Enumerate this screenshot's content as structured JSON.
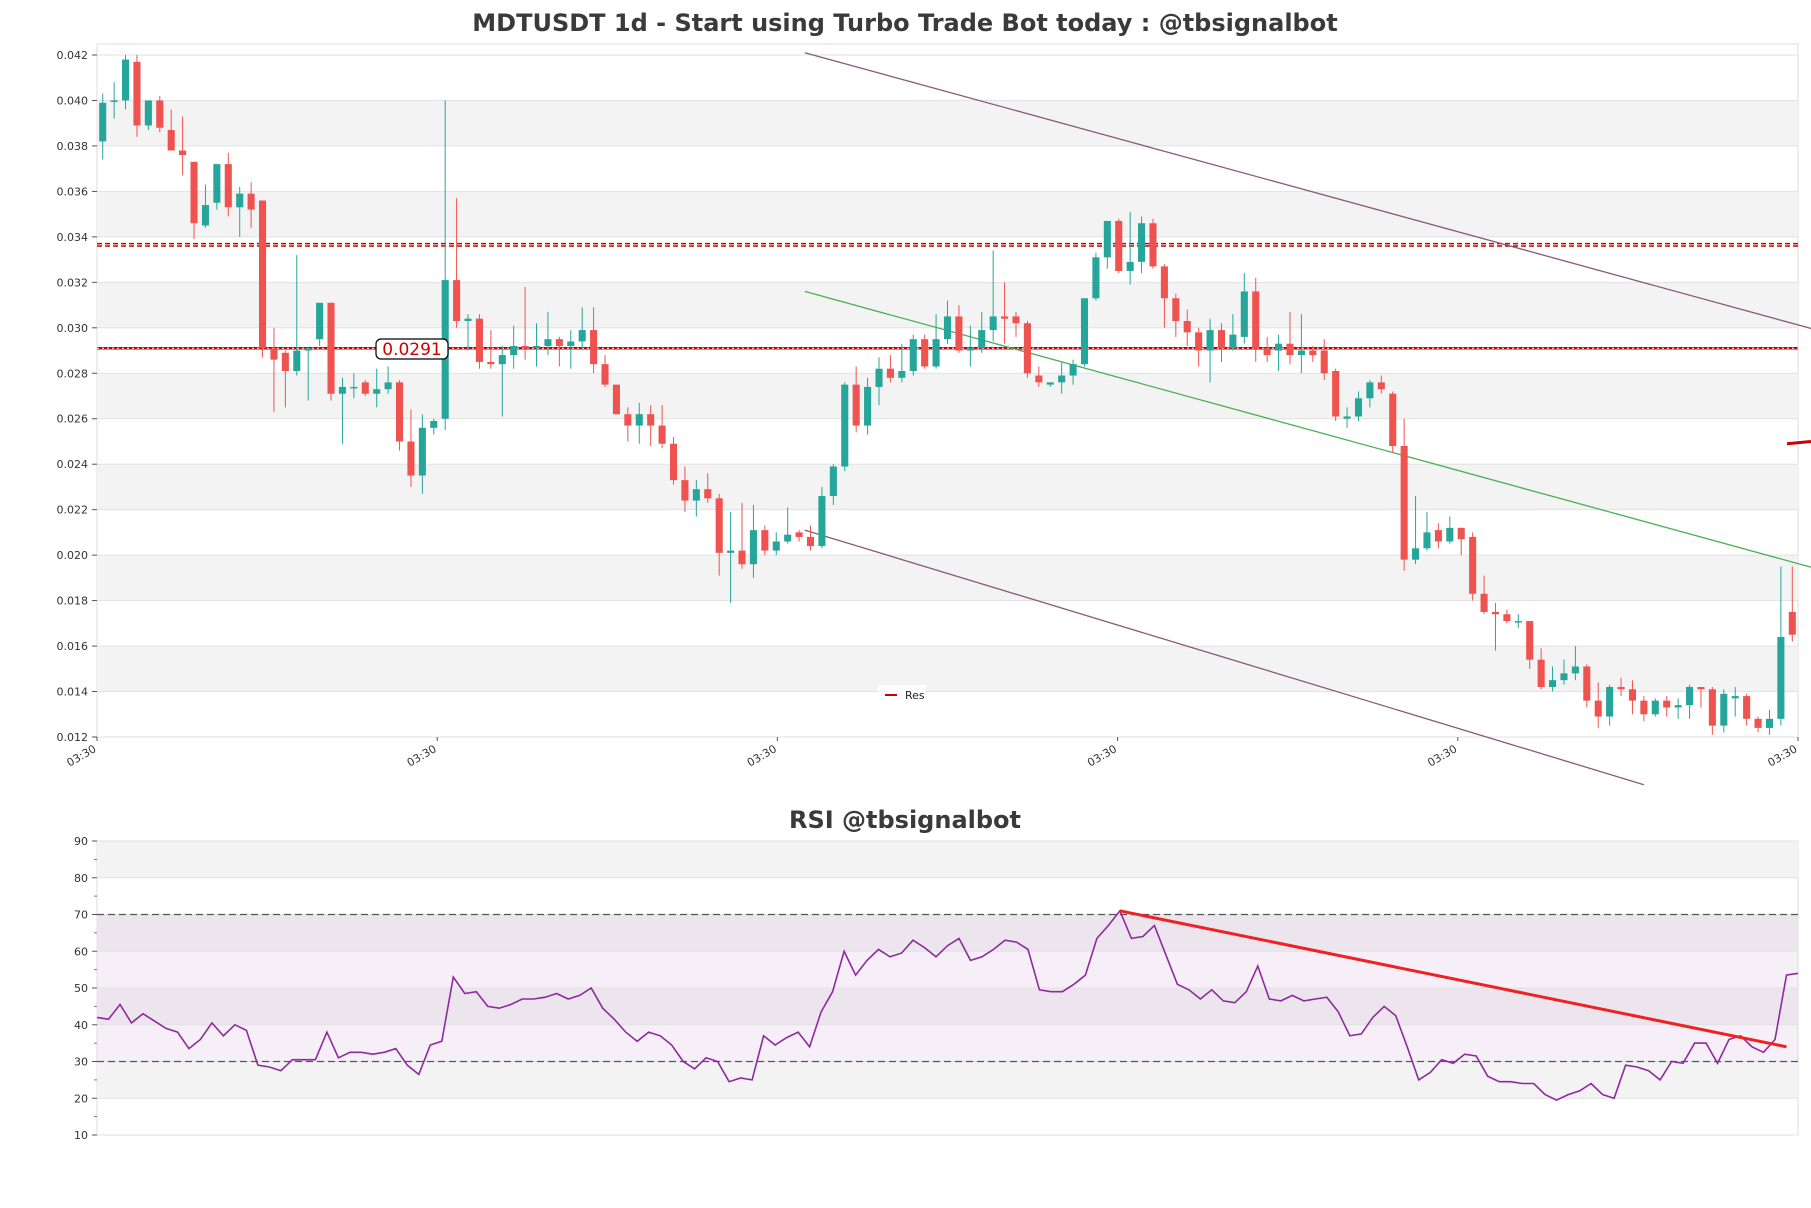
{
  "chart_data": [
    {
      "type": "candlestick",
      "title": "MDTUSDT 1d - Start using Turbo Trade Bot today : @tbsignalbot",
      "ylim": [
        0.012,
        0.042
      ],
      "yticks": [
        "0.012",
        "0.014",
        "0.016",
        "0.018",
        "0.020",
        "0.022",
        "0.024",
        "0.026",
        "0.028",
        "0.030",
        "0.032",
        "0.034",
        "0.036",
        "0.038",
        "0.040",
        "0.042"
      ],
      "xtick_labels": [
        "03:30",
        "03:30",
        "03:30",
        "03:30",
        "03:30",
        "03:30"
      ],
      "resistance_levels": [
        0.0291,
        0.0336,
        0.0337
      ],
      "price_label": "0.0291",
      "legend_label": "Res",
      "colors": {
        "up": "#26a69a",
        "down": "#ef5350",
        "res": "#cc0000",
        "channel": "#8b5a78",
        "mid": "#4caf50"
      },
      "candles": [
        [
          0.0382,
          0.0399,
          0.0374,
          0.0403
        ],
        [
          0.04,
          0.04,
          0.0392,
          0.0408
        ],
        [
          0.04,
          0.0418,
          0.0396,
          0.042
        ],
        [
          0.0417,
          0.0389,
          0.0384,
          0.042
        ],
        [
          0.0389,
          0.04,
          0.0387,
          0.04
        ],
        [
          0.04,
          0.0388,
          0.0386,
          0.0402
        ],
        [
          0.0387,
          0.0378,
          0.0378,
          0.0396
        ],
        [
          0.0378,
          0.0376,
          0.0367,
          0.0393
        ],
        [
          0.0373,
          0.0346,
          0.0339,
          0.0373
        ],
        [
          0.0345,
          0.0354,
          0.0344,
          0.0363
        ],
        [
          0.0355,
          0.0372,
          0.0352,
          0.0372
        ],
        [
          0.0372,
          0.0353,
          0.0349,
          0.0377
        ],
        [
          0.0353,
          0.0359,
          0.034,
          0.0362
        ],
        [
          0.0359,
          0.0352,
          0.0344,
          0.0364
        ],
        [
          0.0356,
          0.0291,
          0.0287,
          0.0356
        ],
        [
          0.0291,
          0.0286,
          0.0263,
          0.03
        ],
        [
          0.0289,
          0.0281,
          0.0265,
          0.029
        ],
        [
          0.0281,
          0.029,
          0.0279,
          0.0332
        ],
        [
          0.029,
          0.0291,
          0.0268,
          0.0291
        ],
        [
          0.0295,
          0.0311,
          0.0292,
          0.0311
        ],
        [
          0.0311,
          0.0271,
          0.0268,
          0.0311
        ],
        [
          0.0271,
          0.0274,
          0.0249,
          0.0278
        ],
        [
          0.0274,
          0.0274,
          0.0269,
          0.028
        ],
        [
          0.0276,
          0.0271,
          0.027,
          0.0277
        ],
        [
          0.0271,
          0.0273,
          0.0265,
          0.0282
        ],
        [
          0.0273,
          0.0276,
          0.0271,
          0.0283
        ],
        [
          0.0276,
          0.025,
          0.0246,
          0.0277
        ],
        [
          0.025,
          0.0235,
          0.023,
          0.0264
        ],
        [
          0.0235,
          0.0256,
          0.0227,
          0.0262
        ],
        [
          0.0256,
          0.0259,
          0.0253,
          0.026
        ],
        [
          0.026,
          0.0321,
          0.0255,
          0.04
        ],
        [
          0.0321,
          0.0303,
          0.03,
          0.0357
        ],
        [
          0.0303,
          0.0304,
          0.029,
          0.0306
        ],
        [
          0.0304,
          0.0285,
          0.0282,
          0.0306
        ],
        [
          0.0285,
          0.0284,
          0.0282,
          0.0299
        ],
        [
          0.0284,
          0.0288,
          0.0261,
          0.0292
        ],
        [
          0.0288,
          0.0292,
          0.0282,
          0.0301
        ],
        [
          0.0292,
          0.0291,
          0.0286,
          0.0318
        ],
        [
          0.0291,
          0.0292,
          0.0283,
          0.0302
        ],
        [
          0.0292,
          0.0295,
          0.0288,
          0.0307
        ],
        [
          0.0295,
          0.0292,
          0.0283,
          0.0296
        ],
        [
          0.0292,
          0.0294,
          0.0282,
          0.0299
        ],
        [
          0.0294,
          0.0299,
          0.0291,
          0.0309
        ],
        [
          0.0299,
          0.0284,
          0.028,
          0.0309
        ],
        [
          0.0284,
          0.0275,
          0.0274,
          0.0288
        ],
        [
          0.0275,
          0.0262,
          0.0262,
          0.0275
        ],
        [
          0.0262,
          0.0257,
          0.025,
          0.0265
        ],
        [
          0.0257,
          0.0262,
          0.0249,
          0.0267
        ],
        [
          0.0262,
          0.0257,
          0.0248,
          0.0266
        ],
        [
          0.0257,
          0.0249,
          0.0247,
          0.0266
        ],
        [
          0.0249,
          0.0233,
          0.0231,
          0.0252
        ],
        [
          0.0233,
          0.0224,
          0.0219,
          0.0239
        ],
        [
          0.0224,
          0.0229,
          0.0217,
          0.0233
        ],
        [
          0.0229,
          0.0225,
          0.0223,
          0.0236
        ],
        [
          0.0225,
          0.0201,
          0.0191,
          0.0227
        ],
        [
          0.0201,
          0.0202,
          0.0179,
          0.0219
        ],
        [
          0.0202,
          0.0196,
          0.0194,
          0.0223
        ],
        [
          0.0196,
          0.0211,
          0.019,
          0.0222
        ],
        [
          0.0211,
          0.0202,
          0.02,
          0.0213
        ],
        [
          0.0202,
          0.0206,
          0.02,
          0.021
        ],
        [
          0.0206,
          0.0209,
          0.0205,
          0.0221
        ],
        [
          0.021,
          0.0208,
          0.0206,
          0.0211
        ],
        [
          0.0208,
          0.0204,
          0.0202,
          0.0213
        ],
        [
          0.0204,
          0.0226,
          0.0203,
          0.023
        ],
        [
          0.0226,
          0.0239,
          0.0222,
          0.024
        ],
        [
          0.0239,
          0.0275,
          0.0237,
          0.0276
        ],
        [
          0.0275,
          0.0257,
          0.0254,
          0.0283
        ],
        [
          0.0257,
          0.0274,
          0.0253,
          0.0278
        ],
        [
          0.0274,
          0.0282,
          0.0266,
          0.0287
        ],
        [
          0.0282,
          0.0278,
          0.0276,
          0.0288
        ],
        [
          0.0278,
          0.0281,
          0.0276,
          0.0293
        ],
        [
          0.0281,
          0.0295,
          0.0279,
          0.0297
        ],
        [
          0.0295,
          0.0283,
          0.0282,
          0.0297
        ],
        [
          0.0283,
          0.0295,
          0.0282,
          0.0306
        ],
        [
          0.0295,
          0.0305,
          0.0293,
          0.0312
        ],
        [
          0.0305,
          0.029,
          0.0289,
          0.031
        ],
        [
          0.029,
          0.0291,
          0.0283,
          0.0301
        ],
        [
          0.0291,
          0.0299,
          0.0289,
          0.0307
        ],
        [
          0.0299,
          0.0305,
          0.0294,
          0.0334
        ],
        [
          0.0305,
          0.0304,
          0.0293,
          0.032
        ],
        [
          0.0305,
          0.0302,
          0.0296,
          0.0307
        ],
        [
          0.0302,
          0.028,
          0.0278,
          0.0303
        ],
        [
          0.0279,
          0.0276,
          0.0274,
          0.0283
        ],
        [
          0.0275,
          0.0276,
          0.0274,
          0.0275
        ],
        [
          0.0276,
          0.0279,
          0.0271,
          0.0285
        ],
        [
          0.0279,
          0.0284,
          0.0275,
          0.0286
        ],
        [
          0.0284,
          0.0313,
          0.0283,
          0.0313
        ],
        [
          0.0313,
          0.0331,
          0.0312,
          0.0333
        ],
        [
          0.0331,
          0.0347,
          0.0326,
          0.0347
        ],
        [
          0.0347,
          0.0325,
          0.0324,
          0.0348
        ],
        [
          0.0325,
          0.0329,
          0.0319,
          0.0351
        ],
        [
          0.0329,
          0.0346,
          0.0324,
          0.0349
        ],
        [
          0.0346,
          0.0327,
          0.0326,
          0.0348
        ],
        [
          0.0327,
          0.0313,
          0.03,
          0.0328
        ],
        [
          0.0313,
          0.0303,
          0.0296,
          0.0315
        ],
        [
          0.0303,
          0.0298,
          0.0292,
          0.0308
        ],
        [
          0.0298,
          0.029,
          0.0283,
          0.03
        ],
        [
          0.029,
          0.0299,
          0.0276,
          0.0304
        ],
        [
          0.0299,
          0.0291,
          0.0285,
          0.0302
        ],
        [
          0.0291,
          0.0297,
          0.029,
          0.0306
        ],
        [
          0.0296,
          0.0316,
          0.0293,
          0.0324
        ],
        [
          0.0316,
          0.0291,
          0.0285,
          0.0322
        ],
        [
          0.0291,
          0.0288,
          0.0285,
          0.0296
        ],
        [
          0.029,
          0.0293,
          0.0281,
          0.0297
        ],
        [
          0.0293,
          0.0288,
          0.0284,
          0.0307
        ],
        [
          0.0288,
          0.029,
          0.028,
          0.0306
        ],
        [
          0.029,
          0.0288,
          0.0285,
          0.0292
        ],
        [
          0.029,
          0.028,
          0.0277,
          0.0295
        ],
        [
          0.0281,
          0.0261,
          0.0259,
          0.0282
        ],
        [
          0.026,
          0.0261,
          0.0256,
          0.0265
        ],
        [
          0.0261,
          0.0269,
          0.0259,
          0.0272
        ],
        [
          0.0269,
          0.0276,
          0.0265,
          0.0277
        ],
        [
          0.0276,
          0.0273,
          0.0271,
          0.0279
        ],
        [
          0.0271,
          0.0248,
          0.0245,
          0.0272
        ],
        [
          0.0248,
          0.0198,
          0.0193,
          0.026
        ],
        [
          0.0198,
          0.0203,
          0.0196,
          0.0226
        ],
        [
          0.0203,
          0.021,
          0.0202,
          0.0219
        ],
        [
          0.0211,
          0.0206,
          0.0203,
          0.0214
        ],
        [
          0.0206,
          0.0212,
          0.0205,
          0.0217
        ],
        [
          0.0212,
          0.0207,
          0.02,
          0.0212
        ],
        [
          0.0208,
          0.0183,
          0.018,
          0.021
        ],
        [
          0.0183,
          0.0175,
          0.0174,
          0.0191
        ],
        [
          0.0175,
          0.0174,
          0.0158,
          0.0179
        ],
        [
          0.0174,
          0.0171,
          0.017,
          0.0176
        ],
        [
          0.0171,
          0.0171,
          0.0168,
          0.0174
        ],
        [
          0.0171,
          0.0154,
          0.015,
          0.0171
        ],
        [
          0.0154,
          0.0142,
          0.0141,
          0.0159
        ],
        [
          0.0142,
          0.0145,
          0.014,
          0.0151
        ],
        [
          0.0145,
          0.0148,
          0.0143,
          0.0154
        ],
        [
          0.0148,
          0.0151,
          0.0145,
          0.016
        ],
        [
          0.0151,
          0.0136,
          0.0133,
          0.0152
        ],
        [
          0.0136,
          0.0129,
          0.0124,
          0.0144
        ],
        [
          0.0129,
          0.0142,
          0.0125,
          0.0143
        ],
        [
          0.0142,
          0.0141,
          0.0138,
          0.0146
        ],
        [
          0.0141,
          0.0136,
          0.013,
          0.0145
        ],
        [
          0.0136,
          0.013,
          0.0127,
          0.0138
        ],
        [
          0.013,
          0.0136,
          0.0129,
          0.0137
        ],
        [
          0.0136,
          0.0133,
          0.0129,
          0.0138
        ],
        [
          0.0133,
          0.0134,
          0.0128,
          0.0137
        ],
        [
          0.0134,
          0.0142,
          0.0128,
          0.0143
        ],
        [
          0.0142,
          0.0141,
          0.0133,
          0.0142
        ],
        [
          0.0141,
          0.0125,
          0.0121,
          0.0142
        ],
        [
          0.0125,
          0.0139,
          0.0122,
          0.0141
        ],
        [
          0.0137,
          0.0138,
          0.0129,
          0.0142
        ],
        [
          0.0138,
          0.0128,
          0.0125,
          0.0139
        ],
        [
          0.0128,
          0.0124,
          0.0122,
          0.0129
        ],
        [
          0.0124,
          0.0128,
          0.0121,
          0.0132
        ],
        [
          0.0128,
          0.0164,
          0.0125,
          0.0195
        ],
        [
          0.0175,
          0.0165,
          0.0162,
          0.0195
        ]
      ]
    },
    {
      "type": "line",
      "title": "RSI @tbsignalbot",
      "ylim": [
        10,
        90
      ],
      "yticks": [
        "10",
        "20",
        "30",
        "40",
        "50",
        "60",
        "70",
        "80",
        "90"
      ],
      "bands": [
        30,
        70
      ],
      "colors": {
        "line": "#8e2a9e",
        "trend": "#ee2222",
        "dash": "#555555"
      },
      "values": [
        42,
        41.5,
        45.5,
        40.5,
        43,
        41,
        39,
        38,
        33.5,
        36,
        40.5,
        37,
        40,
        38.5,
        29,
        28.5,
        27.5,
        30.5,
        30.5,
        30.5,
        38,
        31,
        32.5,
        32.5,
        32,
        32.5,
        33.5,
        29,
        26.5,
        34.5,
        35.5,
        53,
        48.5,
        49,
        45,
        44.5,
        45.5,
        47,
        47,
        47.5,
        48.5,
        47,
        48,
        50,
        44.5,
        41.5,
        38,
        35.5,
        38,
        37,
        34.5,
        30,
        28,
        31,
        30,
        24.5,
        25.5,
        25,
        37,
        34.5,
        36.5,
        38,
        34,
        43.5,
        49,
        60,
        53.5,
        57.5,
        60.5,
        58.5,
        59.5,
        63,
        61,
        58.5,
        61.5,
        63.5,
        57.5,
        58.5,
        60.5,
        63,
        62.5,
        60.5,
        49.5,
        49,
        49,
        51,
        53.5,
        63.5,
        67,
        71,
        63.5,
        64,
        67,
        59,
        51,
        49.5,
        47,
        49.5,
        46.5,
        46,
        49,
        56,
        47,
        46.5,
        48,
        46.5,
        47,
        47.5,
        43.5,
        37,
        37.5,
        42,
        45,
        42.5,
        34,
        25,
        27,
        30.5,
        29.5,
        32,
        31.5,
        26,
        24.5,
        24.5,
        24,
        24,
        21,
        19.5,
        21,
        22,
        24,
        21,
        20,
        29,
        28.5,
        27.5,
        25,
        30,
        29.5,
        35,
        35,
        29.5,
        36,
        37,
        34,
        32.5,
        36,
        53.5,
        54
      ],
      "trendline": [
        [
          89,
          71
        ],
        [
          147,
          34
        ]
      ]
    }
  ]
}
